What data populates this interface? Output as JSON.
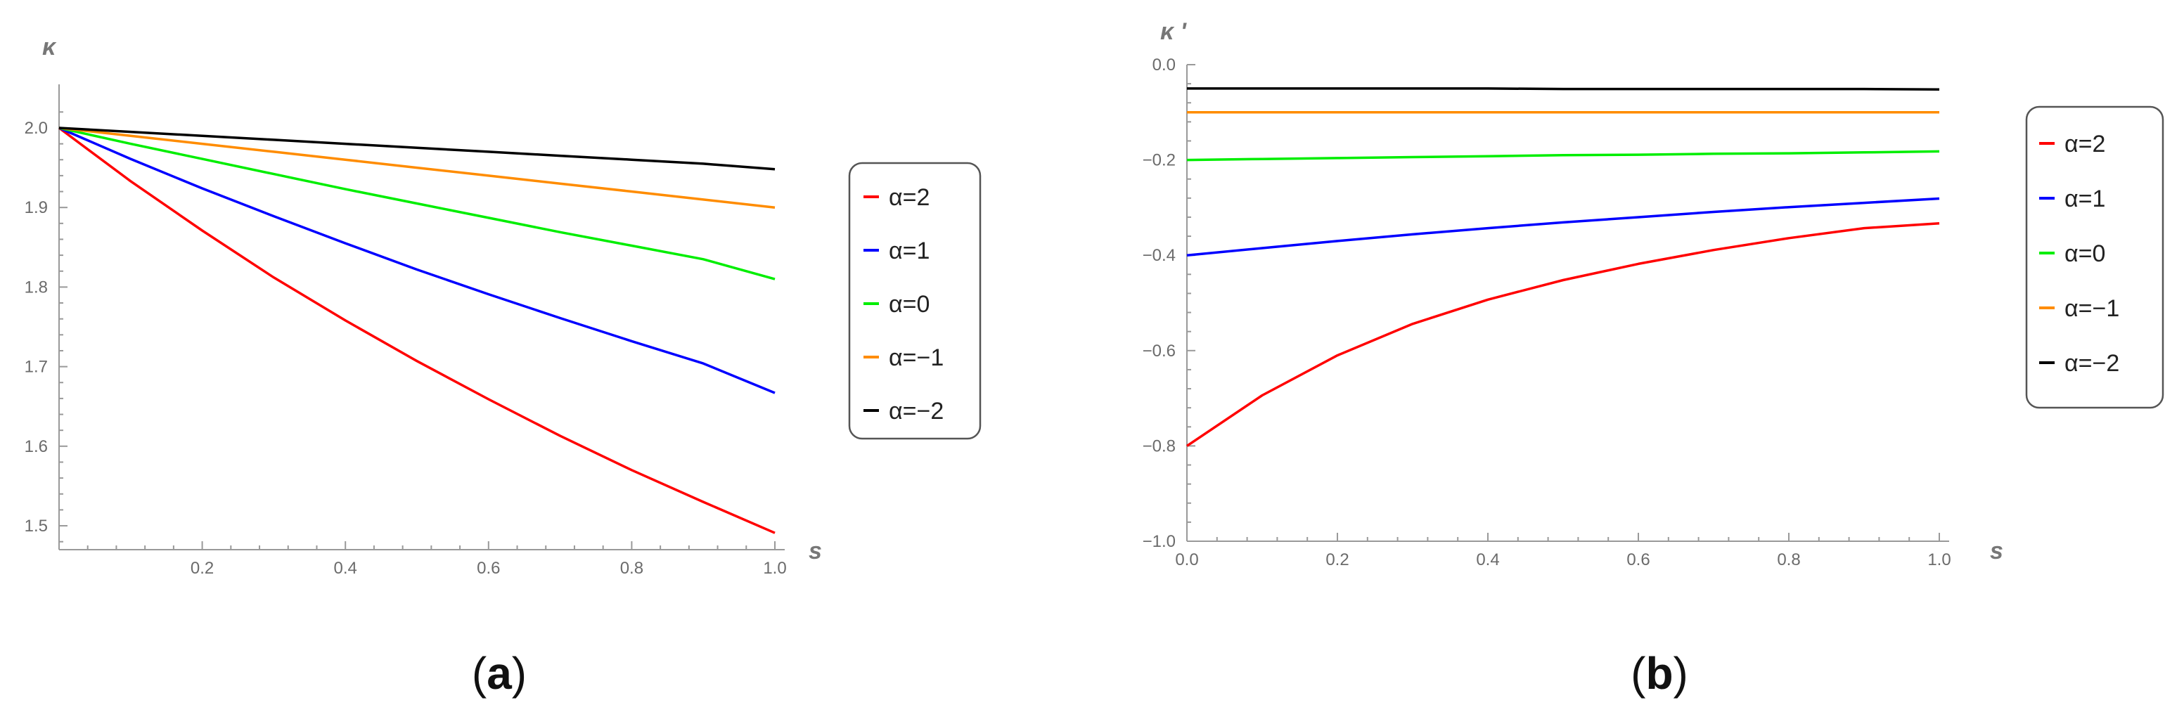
{
  "panels": [
    {
      "id": "a",
      "caption_letter": "a",
      "caption_open": "(",
      "caption_close": ")",
      "chart_data": {
        "type": "line",
        "title": "",
        "xlabel": "s",
        "ylabel": "κ",
        "xlim": [
          0.0,
          1.0
        ],
        "ylim": [
          1.47,
          2.03
        ],
        "xticks": [
          0.2,
          0.4,
          0.6,
          0.8,
          1.0
        ],
        "xtick_labels": [
          "0.2",
          "0.4",
          "0.6",
          "0.8",
          "1.0"
        ],
        "yticks": [
          1.5,
          1.6,
          1.7,
          1.8,
          1.9,
          2.0
        ],
        "ytick_labels": [
          "1.5",
          "1.6",
          "1.7",
          "1.8",
          "1.9",
          "2.0"
        ],
        "legend_position": "right",
        "series": [
          {
            "name": "α=2",
            "color": "#ff0000",
            "x": [
              0,
              0.1,
              0.2,
              0.3,
              0.4,
              0.5,
              0.6,
              0.7,
              0.8,
              0.9,
              1.0
            ],
            "y": [
              2.0,
              1.933,
              1.871,
              1.812,
              1.758,
              1.707,
              1.659,
              1.613,
              1.57,
              1.53,
              1.491
            ]
          },
          {
            "name": "α=1",
            "color": "#0000ff",
            "x": [
              0,
              0.1,
              0.2,
              0.3,
              0.4,
              0.5,
              0.6,
              0.7,
              0.8,
              0.9,
              1.0
            ],
            "y": [
              2.0,
              1.961,
              1.924,
              1.889,
              1.855,
              1.822,
              1.791,
              1.761,
              1.732,
              1.704,
              1.667
            ]
          },
          {
            "name": "α=0",
            "color": "#00ee00",
            "x": [
              0,
              0.1,
              0.2,
              0.3,
              0.4,
              0.5,
              0.6,
              0.7,
              0.8,
              0.9,
              1.0
            ],
            "y": [
              2.0,
              1.98,
              1.961,
              1.942,
              1.923,
              1.905,
              1.887,
              1.869,
              1.852,
              1.835,
              1.81
            ]
          },
          {
            "name": "α=−1",
            "color": "#ff8c00",
            "x": [
              0,
              0.1,
              0.2,
              0.3,
              0.4,
              0.5,
              0.6,
              0.7,
              0.8,
              0.9,
              1.0
            ],
            "y": [
              2.0,
              1.99,
              1.98,
              1.97,
              1.96,
              1.95,
              1.94,
              1.93,
              1.92,
              1.91,
              1.9
            ]
          },
          {
            "name": "α=−2",
            "color": "#000000",
            "x": [
              0,
              0.1,
              0.2,
              0.3,
              0.4,
              0.5,
              0.6,
              0.7,
              0.8,
              0.9,
              1.0
            ],
            "y": [
              2.0,
              1.995,
              1.99,
              1.985,
              1.98,
              1.975,
              1.97,
              1.965,
              1.96,
              1.955,
              1.948
            ]
          }
        ]
      }
    },
    {
      "id": "b",
      "caption_letter": "b",
      "caption_open": "(",
      "caption_close": ")",
      "chart_data": {
        "type": "line",
        "title": "",
        "xlabel": "s",
        "ylabel": "κ '",
        "xlim": [
          0.0,
          1.0
        ],
        "ylim": [
          -1.0,
          0.0
        ],
        "xticks": [
          0.0,
          0.2,
          0.4,
          0.6,
          0.8,
          1.0
        ],
        "xtick_labels": [
          "0.0",
          "0.2",
          "0.4",
          "0.6",
          "0.8",
          "1.0"
        ],
        "yticks": [
          -1.0,
          -0.8,
          -0.6,
          -0.4,
          -0.2,
          0.0
        ],
        "ytick_labels": [
          "−1.0",
          "−0.8",
          "−0.6",
          "−0.4",
          "−0.2",
          "0.0"
        ],
        "legend_position": "right",
        "series": [
          {
            "name": "α=2",
            "color": "#ff0000",
            "x": [
              0,
              0.1,
              0.2,
              0.3,
              0.4,
              0.5,
              0.6,
              0.7,
              0.8,
              0.9,
              1.0
            ],
            "y": [
              -0.8,
              -0.694,
              -0.61,
              -0.544,
              -0.493,
              -0.452,
              -0.418,
              -0.389,
              -0.364,
              -0.343,
              -0.333
            ]
          },
          {
            "name": "α=1",
            "color": "#0000ff",
            "x": [
              0,
              0.1,
              0.2,
              0.3,
              0.4,
              0.5,
              0.6,
              0.7,
              0.8,
              0.9,
              1.0
            ],
            "y": [
              -0.4,
              -0.385,
              -0.37,
              -0.356,
              -0.343,
              -0.331,
              -0.32,
              -0.309,
              -0.299,
              -0.29,
              -0.281
            ]
          },
          {
            "name": "α=0",
            "color": "#00ee00",
            "x": [
              0,
              0.1,
              0.2,
              0.3,
              0.4,
              0.5,
              0.6,
              0.7,
              0.8,
              0.9,
              1.0
            ],
            "y": [
              -0.2,
              -0.198,
              -0.196,
              -0.194,
              -0.192,
              -0.19,
              -0.189,
              -0.187,
              -0.186,
              -0.184,
              -0.182
            ]
          },
          {
            "name": "α=−1",
            "color": "#ff8c00",
            "x": [
              0,
              0.1,
              0.2,
              0.3,
              0.4,
              0.5,
              0.6,
              0.7,
              0.8,
              0.9,
              1.0
            ],
            "y": [
              -0.1,
              -0.1,
              -0.1,
              -0.1,
              -0.1,
              -0.1,
              -0.1,
              -0.1,
              -0.1,
              -0.1,
              -0.1
            ]
          },
          {
            "name": "α=−2",
            "color": "#000000",
            "x": [
              0,
              0.1,
              0.2,
              0.3,
              0.4,
              0.5,
              0.6,
              0.7,
              0.8,
              0.9,
              1.0
            ],
            "y": [
              -0.05,
              -0.05,
              -0.05,
              -0.05,
              -0.05,
              -0.051,
              -0.051,
              -0.051,
              -0.051,
              -0.051,
              -0.052
            ]
          }
        ]
      }
    }
  ]
}
